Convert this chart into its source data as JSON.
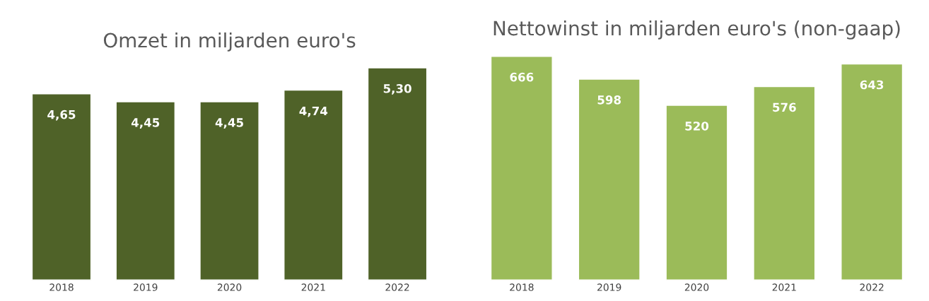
{
  "chart_data": [
    {
      "type": "bar",
      "title": "Omzet in miljarden euro's",
      "categories": [
        "2018",
        "2019",
        "2020",
        "2021",
        "2022"
      ],
      "values": [
        4.65,
        4.45,
        4.45,
        4.74,
        5.3
      ],
      "value_labels": [
        "4,65",
        "4,45",
        "4,45",
        "4,74",
        "5,30"
      ],
      "color": "#4f6228",
      "tick_labels": "x",
      "grid": false
    },
    {
      "type": "bar",
      "title": "Nettowinst in miljarden euro's (non-gaap)",
      "categories": [
        "2018",
        "2019",
        "2020",
        "2021",
        "2022"
      ],
      "values": [
        666,
        598,
        520,
        576,
        643
      ],
      "data_labels": true,
      "color": "#9bbb59",
      "tick_labels": "x",
      "grid": false
    }
  ]
}
